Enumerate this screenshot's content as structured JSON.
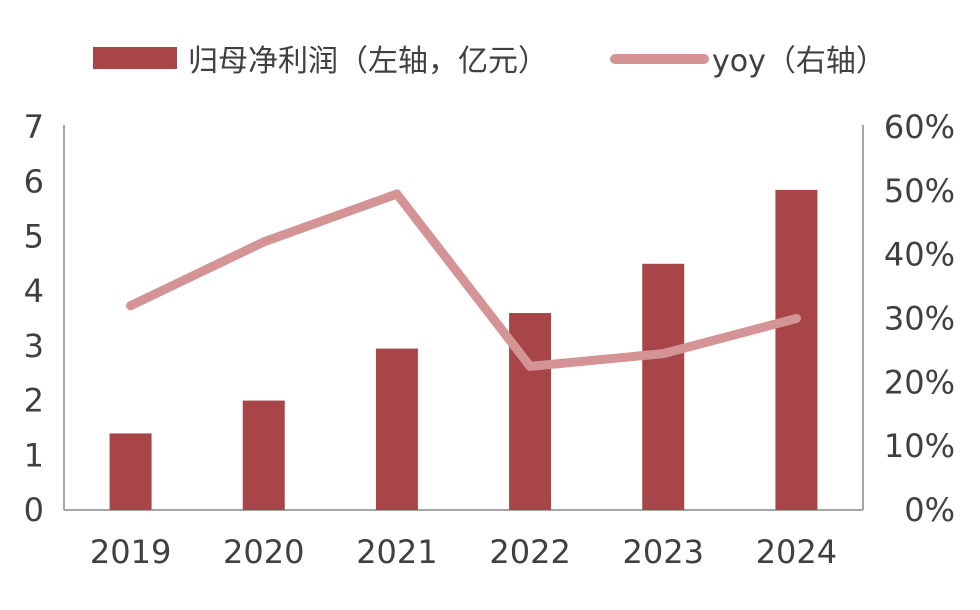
{
  "chart_data": {
    "type": "bar+line",
    "categories": [
      "2019",
      "2020",
      "2021",
      "2022",
      "2023",
      "2024"
    ],
    "series": [
      {
        "name": "归母净利润（左轴，亿元）",
        "type": "bar",
        "axis": "left",
        "color": "#A84548",
        "values": [
          1.4,
          2.0,
          2.95,
          3.6,
          4.5,
          5.85
        ]
      },
      {
        "name": "yoy（右轴）",
        "type": "line",
        "axis": "right",
        "color": "#D49496",
        "values": [
          32,
          42,
          49.5,
          22.5,
          24.5,
          30
        ]
      }
    ],
    "left_axis": {
      "min": 0,
      "max": 7,
      "ticks": [
        "0",
        "1",
        "2",
        "3",
        "4",
        "5",
        "6",
        "7"
      ]
    },
    "right_axis": {
      "min": 0,
      "max": 60,
      "ticks": [
        "0%",
        "10%",
        "20%",
        "30%",
        "40%",
        "50%",
        "60%"
      ]
    },
    "legend_position": "top",
    "grid": false
  }
}
